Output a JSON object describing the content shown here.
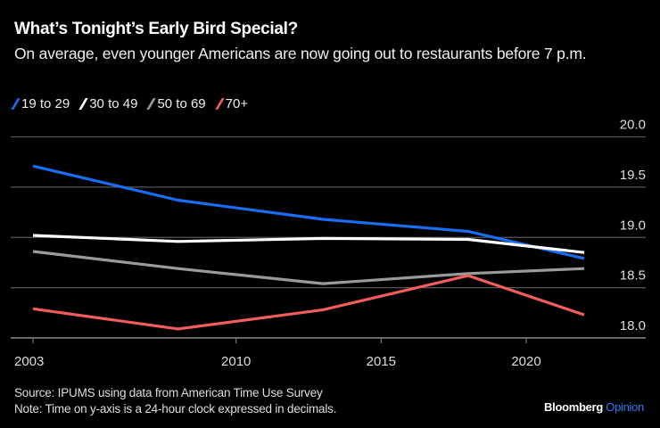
{
  "chart_data": {
    "type": "line",
    "title": "What’s Tonight’s Early Bird Special?",
    "subtitle": "On average, even younger Americans are now going out to restaurants before 7 p.m.",
    "xlabel": "",
    "ylabel": "",
    "x": [
      2003,
      2008,
      2013,
      2018,
      2022
    ],
    "xticks": [
      2003,
      2010,
      2015,
      2020
    ],
    "xtick_labels": [
      "2003",
      "2010",
      "2015",
      "2020"
    ],
    "xlim": [
      2002.3,
      2024.1
    ],
    "ylim": [
      18.0,
      20.0
    ],
    "yticks": [
      18.0,
      18.5,
      19.0,
      19.5,
      20.0
    ],
    "ytick_labels": [
      "18.0",
      "18.5",
      "19.0",
      "19.5",
      "20.0"
    ],
    "grid": true,
    "legend_position": "top-left",
    "series": [
      {
        "name": "19 to 29",
        "color": "#1a6ef5",
        "values": [
          19.71,
          19.37,
          19.18,
          19.06,
          18.79
        ]
      },
      {
        "name": "30 to 49",
        "color": "#ffffff",
        "values": [
          19.02,
          18.96,
          18.99,
          18.98,
          18.85
        ]
      },
      {
        "name": "50 to 69",
        "color": "#9a9a9a",
        "values": [
          18.86,
          18.69,
          18.54,
          18.64,
          18.69
        ]
      },
      {
        "name": "70+",
        "color": "#f25c5c",
        "values": [
          18.29,
          18.09,
          18.28,
          18.62,
          18.23
        ]
      }
    ]
  },
  "footer": {
    "source": "Source: IPUMS using data from American Time Use Survey",
    "note": "Note: Time on y-axis is a 24-hour clock expressed in decimals."
  },
  "brand": {
    "name": "Bloomberg",
    "section": "Opinion"
  }
}
